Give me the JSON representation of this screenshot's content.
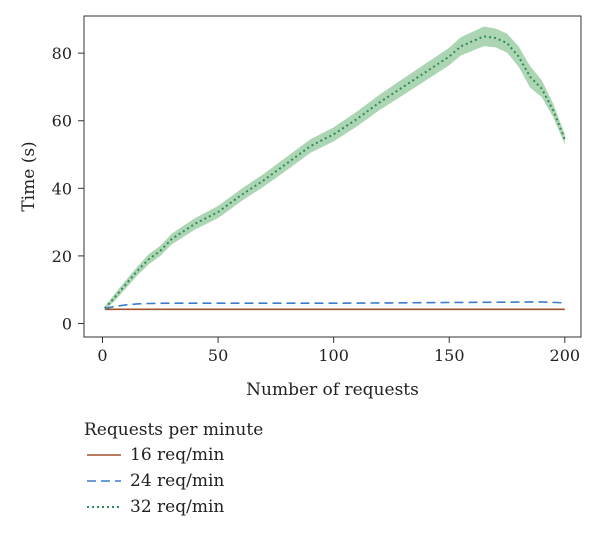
{
  "chart_data": {
    "type": "line",
    "xlabel": "Number of requests",
    "ylabel": "Time (s)",
    "xlim": [
      -8,
      207
    ],
    "ylim": [
      -4,
      91
    ],
    "xticks": [
      0,
      50,
      100,
      150,
      200
    ],
    "yticks": [
      0,
      20,
      40,
      60,
      80
    ],
    "grid": false,
    "legend": {
      "title": "Requests per minute",
      "placement": "bottom-left, outside plot"
    },
    "series": [
      {
        "name": "16 req/min",
        "color": "#a0522d",
        "style": "solid",
        "x": [
          1,
          25,
          50,
          75,
          100,
          125,
          150,
          175,
          200
        ],
        "y": [
          4.2,
          4.2,
          4.2,
          4.2,
          4.2,
          4.2,
          4.2,
          4.2,
          4.2
        ]
      },
      {
        "name": "24 req/min",
        "color": "#3a7cc9",
        "style": "dashed",
        "x": [
          1,
          5,
          10,
          15,
          20,
          30,
          50,
          75,
          100,
          125,
          150,
          175,
          190,
          200
        ],
        "y": [
          4.5,
          5.0,
          5.5,
          5.8,
          5.9,
          6.0,
          6.0,
          6.0,
          6.0,
          6.1,
          6.2,
          6.3,
          6.4,
          6.1
        ]
      },
      {
        "name": "32 req/min",
        "color": "#2e8b57",
        "band_color": "#7fc08a",
        "style": "dotted",
        "x": [
          1,
          5,
          10,
          15,
          20,
          25,
          30,
          40,
          50,
          60,
          70,
          80,
          90,
          100,
          110,
          120,
          130,
          140,
          150,
          155,
          160,
          165,
          170,
          175,
          180,
          185,
          190,
          195,
          200
        ],
        "y": [
          4.5,
          7.5,
          11.5,
          15.5,
          19,
          21.5,
          25,
          29.5,
          33,
          38,
          42.5,
          47.5,
          52.5,
          56,
          60.5,
          65.5,
          70,
          74.5,
          79,
          82,
          83.5,
          85,
          84.5,
          83,
          79,
          73,
          69.5,
          63,
          54.5
        ],
        "band_half_width": [
          0.5,
          1.0,
          1.2,
          1.3,
          1.5,
          1.5,
          1.6,
          1.7,
          1.8,
          1.8,
          1.9,
          2.0,
          2.0,
          2.1,
          2.2,
          2.3,
          2.4,
          2.5,
          2.6,
          2.7,
          2.8,
          2.9,
          2.8,
          2.8,
          3.0,
          3.2,
          2.5,
          2.0,
          1.5
        ]
      }
    ]
  }
}
